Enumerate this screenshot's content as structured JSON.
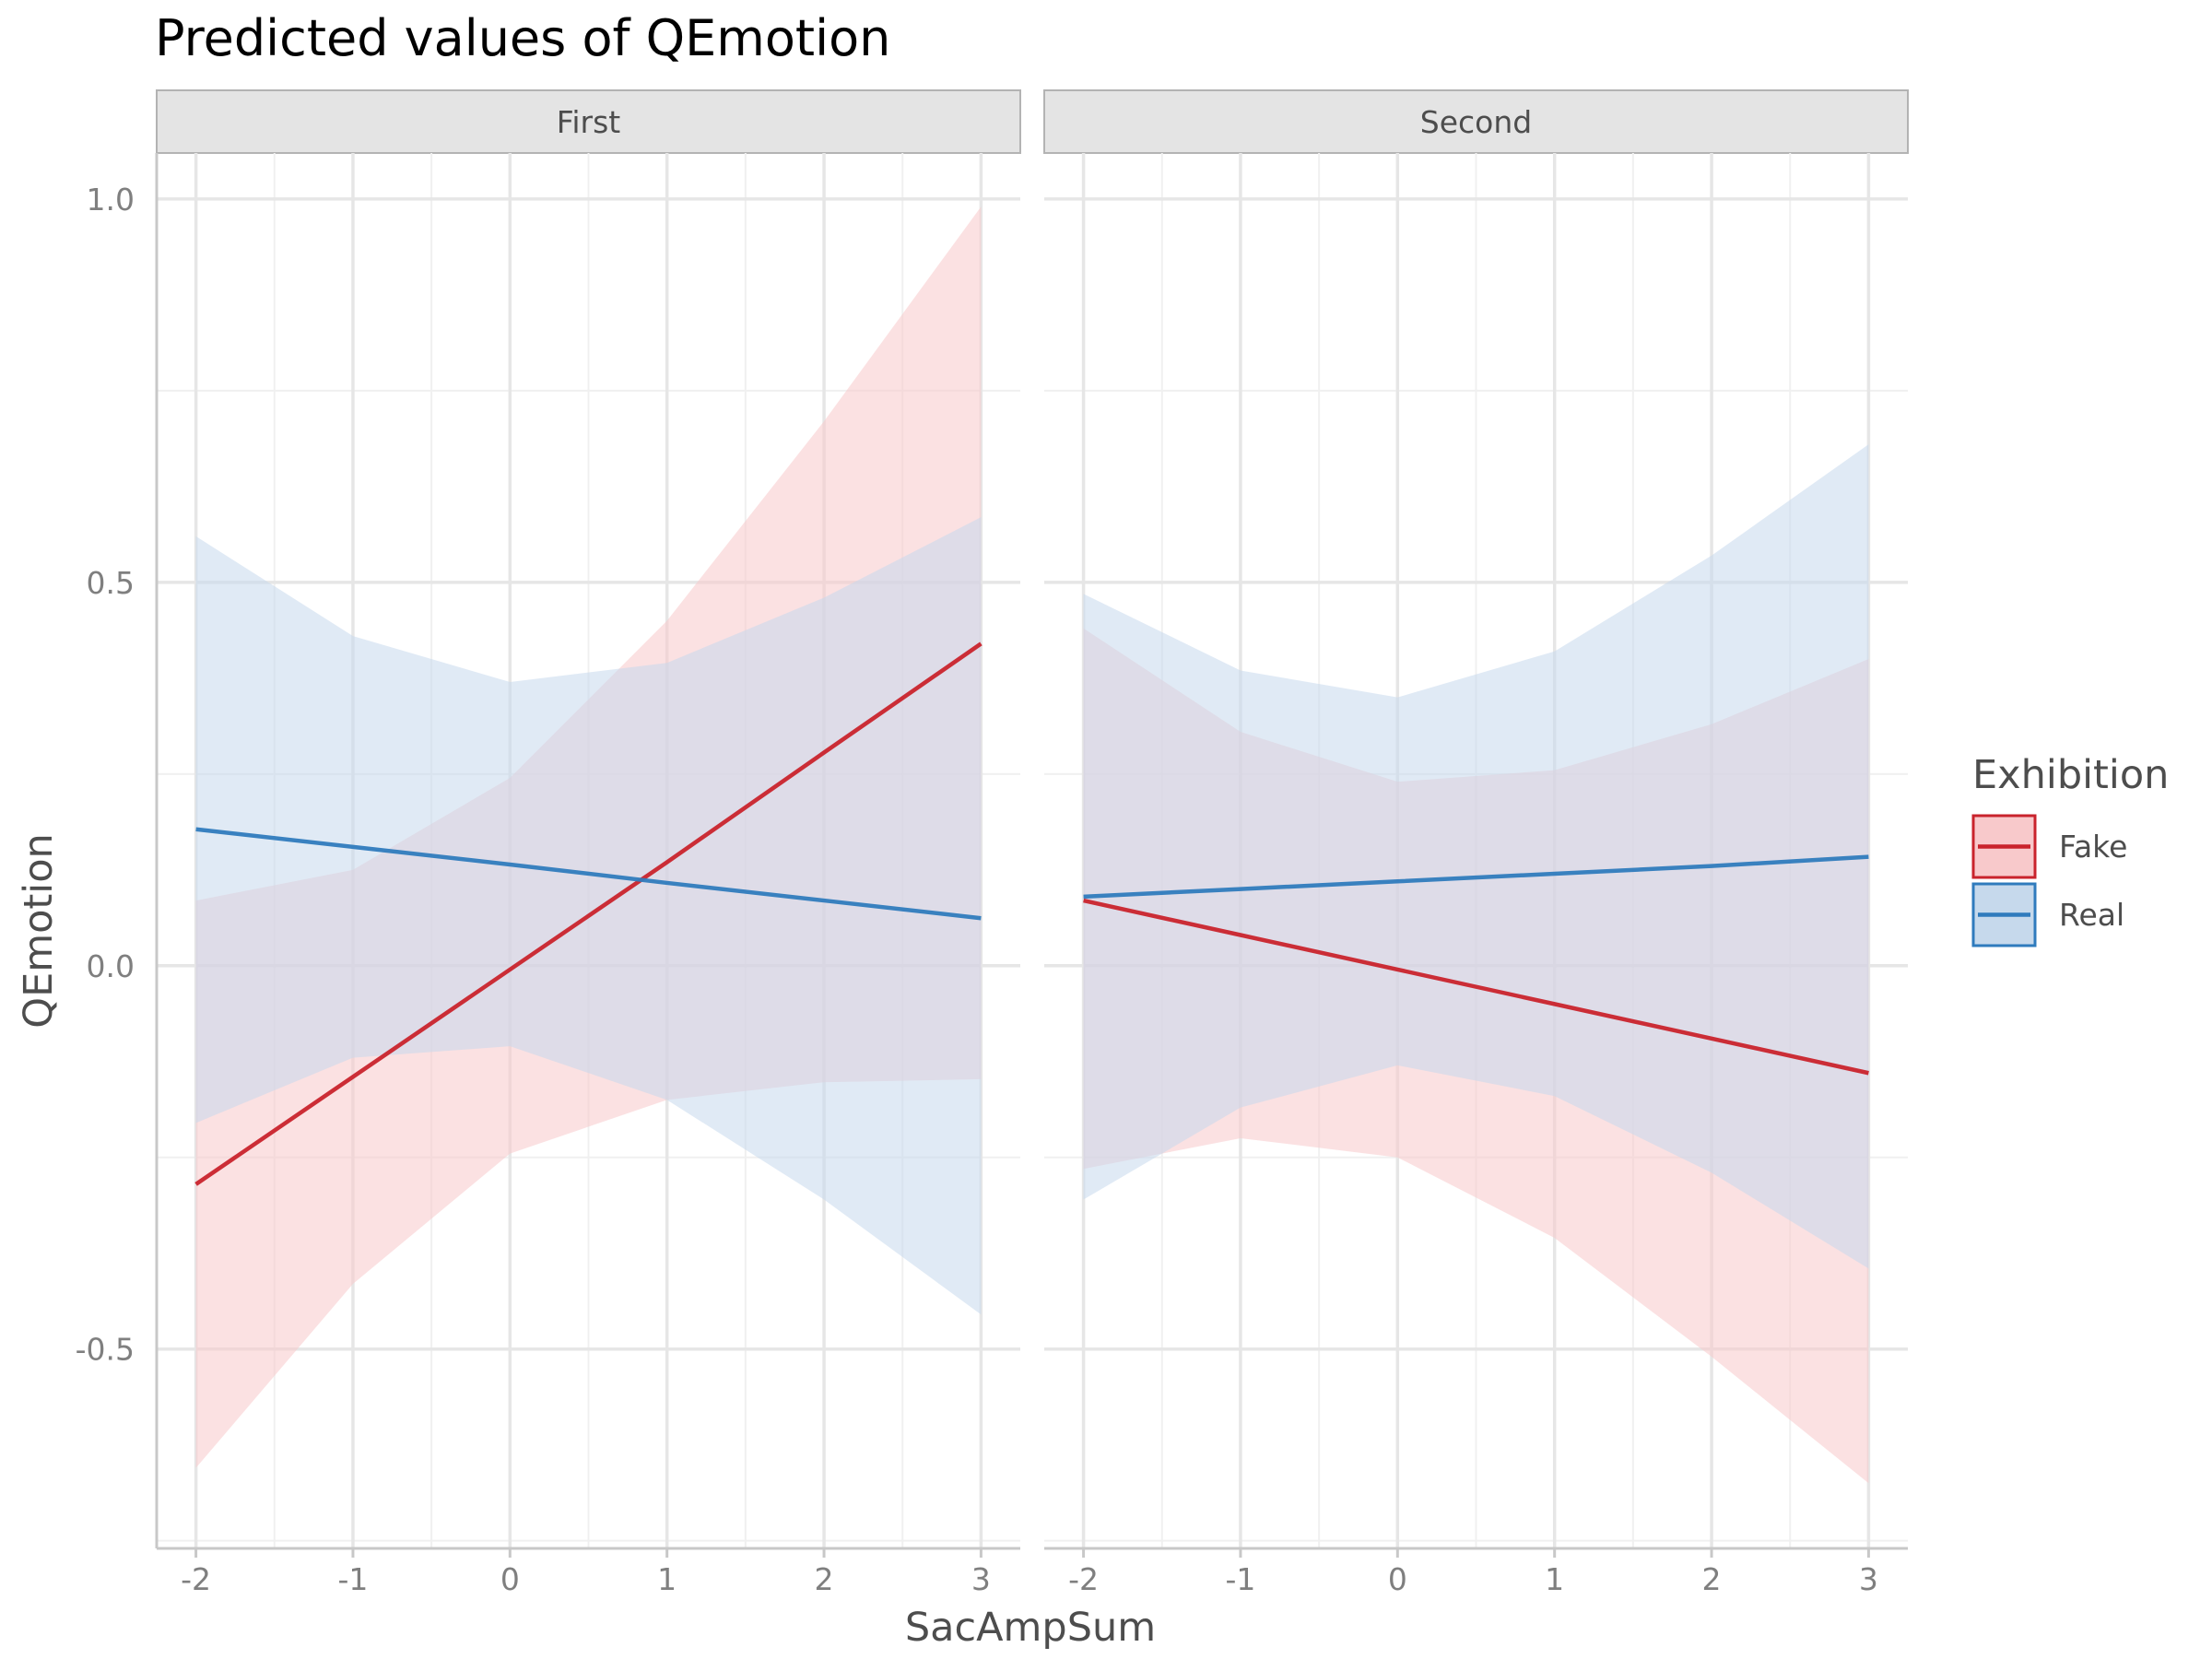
{
  "chart_data": {
    "type": "line",
    "title": "Predicted values of QEmotion",
    "xlabel": "SacAmpSum",
    "ylabel": "QEmotion",
    "xlim": [
      -2.25,
      3.25
    ],
    "ylim": [
      -0.76,
      1.06
    ],
    "x_ticks": [
      -2,
      -1,
      0,
      1,
      2,
      3
    ],
    "x_tick_labels": [
      "-2",
      "-1",
      "0",
      "1",
      "2",
      "3"
    ],
    "y_ticks": [
      -0.5,
      0,
      0.5,
      1.0
    ],
    "y_tick_labels": [
      "-0.5",
      "0.0",
      "0.5",
      "1.0"
    ],
    "y_minor_ticks": [
      -0.75,
      -0.25,
      0.25,
      0.75
    ],
    "grid": true,
    "legend": {
      "title": "Exhibition",
      "position": "right",
      "items": [
        {
          "label": "Fake",
          "color": "#c9232c",
          "fill": "#f8c9cb"
        },
        {
          "label": "Real",
          "color": "#2f7bbd",
          "fill": "#c6d9ec"
        }
      ]
    },
    "panels": [
      {
        "label": "First",
        "x": [
          -2,
          -1,
          0,
          1,
          2,
          3
        ],
        "series": [
          {
            "name": "Fake",
            "color": "#c9232c",
            "values": [
              -0.285,
              -0.145,
              -0.005,
              0.135,
              0.278,
              0.42
            ],
            "lower": [
              -0.655,
              -0.415,
              -0.245,
              -0.175,
              -0.152,
              -0.148
            ],
            "upper": [
              0.085,
              0.125,
              0.245,
              0.45,
              0.71,
              0.99
            ]
          },
          {
            "name": "Real",
            "color": "#2f7bbd",
            "values": [
              0.178,
              0.155,
              0.132,
              0.108,
              0.085,
              0.062
            ],
            "lower": [
              -0.205,
              -0.12,
              -0.105,
              -0.175,
              -0.305,
              -0.455
            ],
            "upper": [
              0.56,
              0.43,
              0.37,
              0.395,
              0.48,
              0.585
            ]
          }
        ]
      },
      {
        "label": "Second",
        "x": [
          -2,
          -1,
          0,
          1,
          2,
          3
        ],
        "series": [
          {
            "name": "Fake",
            "color": "#c9232c",
            "values": [
              0.085,
              0.04,
              -0.005,
              -0.05,
              -0.095,
              -0.14
            ],
            "lower": [
              -0.265,
              -0.225,
              -0.25,
              -0.355,
              -0.51,
              -0.675
            ],
            "upper": [
              0.44,
              0.305,
              0.24,
              0.255,
              0.315,
              0.4
            ]
          },
          {
            "name": "Real",
            "color": "#2f7bbd",
            "values": [
              0.09,
              0.1,
              0.11,
              0.12,
              0.13,
              0.142
            ],
            "lower": [
              -0.305,
              -0.185,
              -0.13,
              -0.17,
              -0.27,
              -0.395
            ],
            "upper": [
              0.485,
              0.385,
              0.35,
              0.41,
              0.535,
              0.68
            ]
          }
        ]
      }
    ]
  }
}
